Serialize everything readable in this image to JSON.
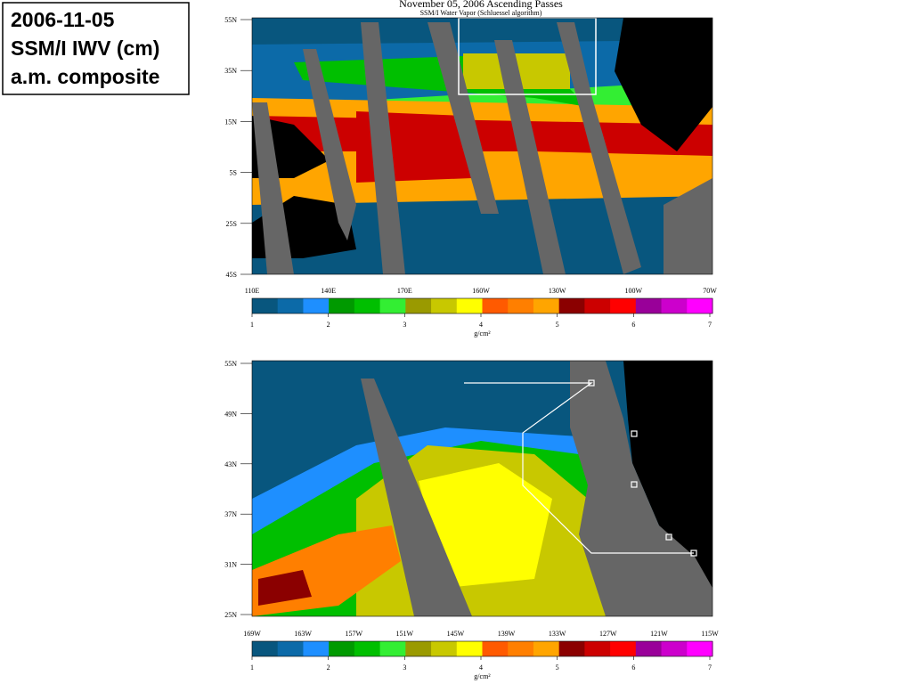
{
  "label_box": {
    "lines": [
      "2006-11-05",
      "SSM/I IWV (cm)",
      "a.m. composite"
    ]
  },
  "maps": [
    {
      "title": "November 05, 2006  Ascending Passes",
      "subtitle": "SSM/I Water Vapor (Schluessel algorithm)",
      "lat_labels": [
        "55N",
        "35N",
        "15N",
        "5S",
        "25S",
        "45S"
      ],
      "lon_labels": [
        "110E",
        "140E",
        "170E",
        "160W",
        "130W",
        "100W",
        "70W"
      ],
      "colorbar": {
        "ticks": [
          1,
          2,
          3,
          4,
          5,
          6,
          7
        ],
        "unit": "g/cm²",
        "colors": [
          "#08567e",
          "#0c6aa8",
          "#1e8fff",
          "#009a00",
          "#00bf00",
          "#33ee33",
          "#9a9a00",
          "#c8c800",
          "#ffff00",
          "#ff5a00",
          "#ff7f00",
          "#ffa500",
          "#8b0000",
          "#cc0000",
          "#ff0000",
          "#990099",
          "#cc00cc",
          "#ff00ff"
        ]
      }
    },
    {
      "lat_labels": [
        "55N",
        "49N",
        "43N",
        "37N",
        "31N",
        "25N"
      ],
      "lon_labels": [
        "169W",
        "163W",
        "157W",
        "151W",
        "145W",
        "139W",
        "133W",
        "127W",
        "121W",
        "115W"
      ],
      "colorbar": {
        "ticks": [
          1,
          2,
          3,
          4,
          5,
          6,
          7
        ],
        "unit": "g/cm²",
        "colors": [
          "#08567e",
          "#0c6aa8",
          "#1e8fff",
          "#009a00",
          "#00bf00",
          "#33ee33",
          "#9a9a00",
          "#c8c800",
          "#ffff00",
          "#ff5a00",
          "#ff7f00",
          "#ffa500",
          "#8b0000",
          "#cc0000",
          "#ff0000",
          "#990099",
          "#cc00cc",
          "#ff00ff"
        ]
      }
    }
  ]
}
